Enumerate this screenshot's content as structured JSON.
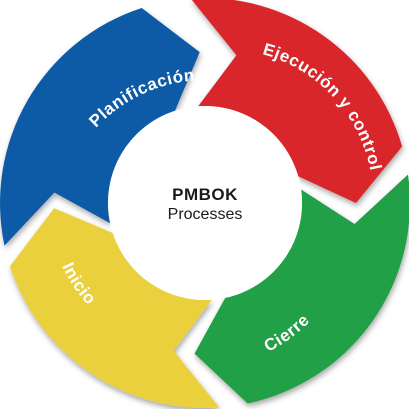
{
  "center": {
    "title": "PMBOK",
    "subtitle": "Processes"
  },
  "segments": [
    {
      "key": "planificacion",
      "label": "Planificación",
      "color": "#0c5aa6"
    },
    {
      "key": "ejecucion",
      "label": "Ejecución y control",
      "color": "#d8262a"
    },
    {
      "key": "cierre",
      "label": "Cierre",
      "color": "#24a046"
    },
    {
      "key": "inicio",
      "label": "Inicio",
      "color": "#ebd03c"
    }
  ]
}
